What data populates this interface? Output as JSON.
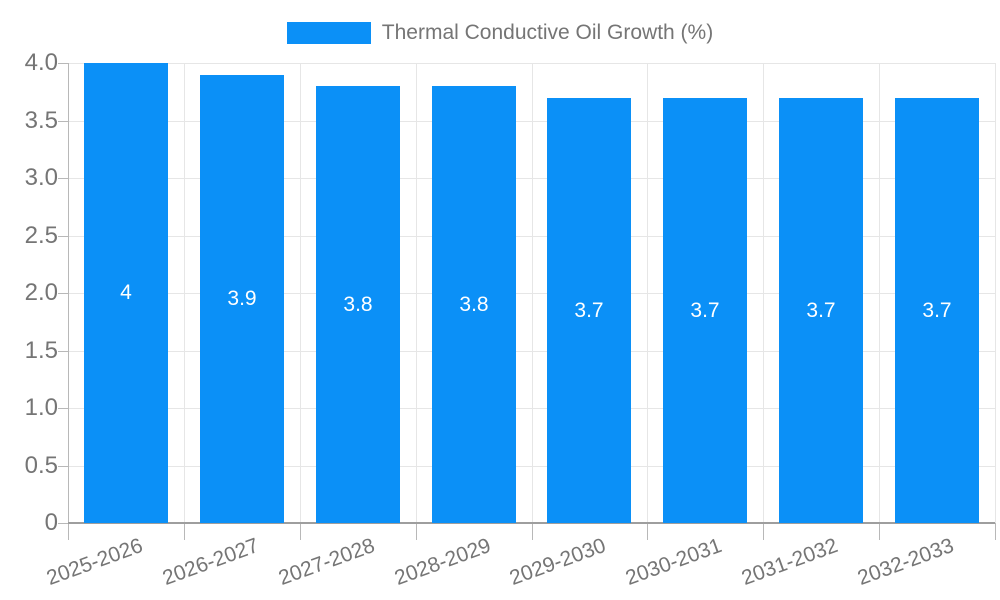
{
  "chart_data": {
    "type": "bar",
    "title": "",
    "legend": {
      "label": "Thermal Conductive Oil Growth (%)",
      "position": "top-center"
    },
    "categories": [
      "2025-2026",
      "2026-2027",
      "2027-2028",
      "2028-2029",
      "2029-2030",
      "2030-2031",
      "2031-2032",
      "2032-2033"
    ],
    "values": [
      4,
      3.9,
      3.8,
      3.8,
      3.7,
      3.7,
      3.7,
      3.7
    ],
    "value_labels": [
      "4",
      "3.9",
      "3.8",
      "3.8",
      "3.7",
      "3.7",
      "3.7",
      "3.7"
    ],
    "xlabel": "",
    "ylabel": "",
    "ylim": [
      0,
      4
    ],
    "yticks": [
      0,
      0.5,
      1,
      1.5,
      2,
      2.5,
      3,
      3.5,
      4
    ],
    "ytick_labels": [
      "0",
      "0.5",
      "1.0",
      "1.5",
      "2.0",
      "2.5",
      "3.0",
      "3.5",
      "4.0"
    ],
    "grid": true,
    "colors": {
      "bar": "#0b90f7",
      "bar_label_text": "#ffffff",
      "axis_text": "#757575",
      "gridline": "#e6e6e6",
      "axis_line": "#b8b8b8",
      "baseline": "#9e9e9e",
      "background": "#ffffff"
    }
  }
}
